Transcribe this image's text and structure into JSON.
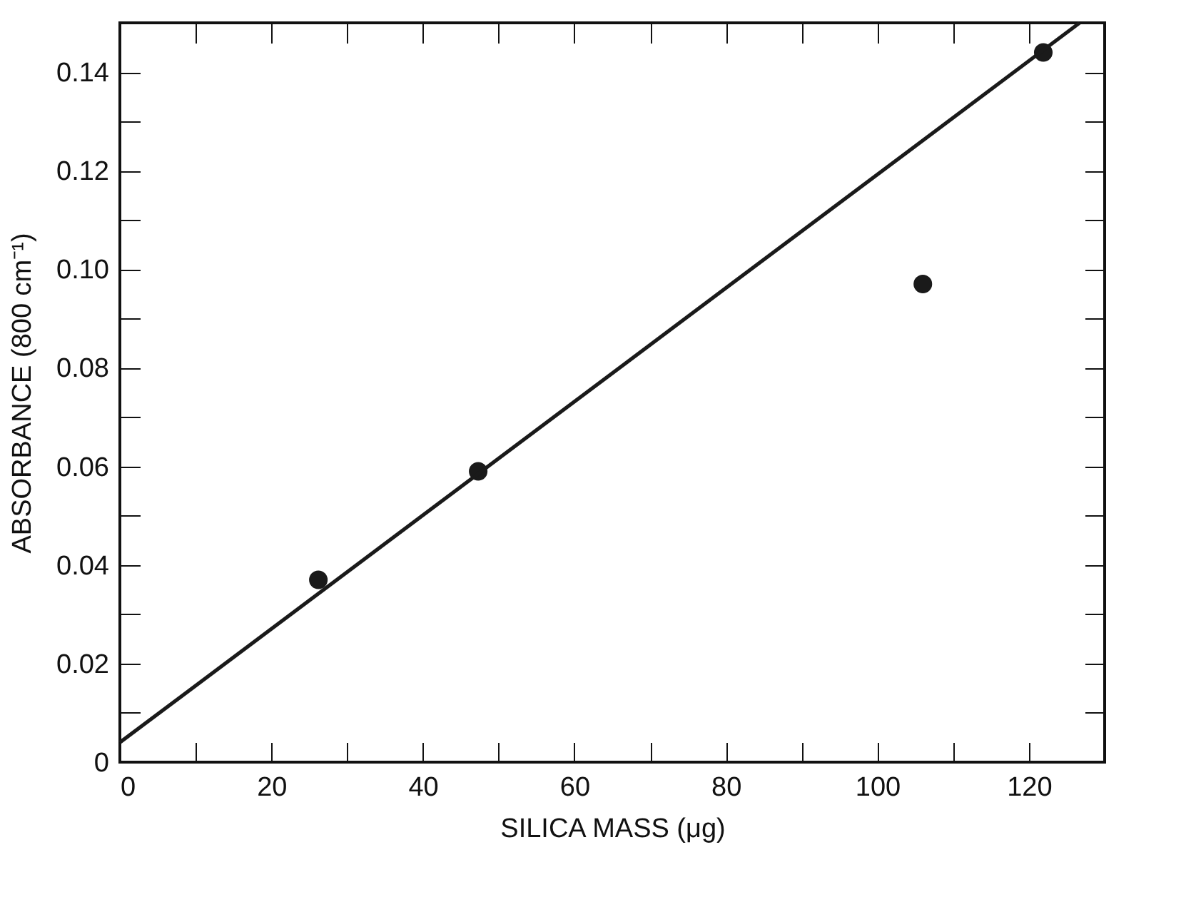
{
  "chart_data": {
    "type": "scatter",
    "xlabel": "SILICA MASS (μg)",
    "ylabel": "ABSORBANCE (800 cm⁻¹)",
    "xlim": [
      0,
      130
    ],
    "ylim": [
      0,
      0.15
    ],
    "xticks": [
      0,
      {
        "value": 10,
        "label": null
      },
      20,
      {
        "value": 30,
        "label": null
      },
      40,
      {
        "value": 50,
        "label": null
      },
      60,
      {
        "value": 70,
        "label": null
      },
      80,
      {
        "value": 90,
        "label": null
      },
      100,
      {
        "value": 110,
        "label": null
      },
      120
    ],
    "yticks": [
      0,
      {
        "value": 0.01,
        "label": null
      },
      {
        "value": 0.02,
        "label": "0.02"
      },
      {
        "value": 0.03,
        "label": null
      },
      {
        "value": 0.04,
        "label": "0.04"
      },
      {
        "value": 0.05,
        "label": null
      },
      {
        "value": 0.06,
        "label": "0.06"
      },
      {
        "value": 0.07,
        "label": null
      },
      {
        "value": 0.08,
        "label": "0.08"
      },
      {
        "value": 0.09,
        "label": null
      },
      {
        "value": 0.1,
        "label": "0.10"
      },
      {
        "value": 0.11,
        "label": null
      },
      {
        "value": 0.12,
        "label": "0.12"
      },
      {
        "value": 0.13,
        "label": null
      },
      {
        "value": 0.14,
        "label": "0.14"
      }
    ],
    "grid": false,
    "series": [
      {
        "type": "scatter",
        "marker": "circle",
        "color": "#1a1a1a",
        "x": [
          26.2,
          47.3,
          106,
          121.9
        ],
        "values": [
          0.037,
          0.059,
          0.097,
          0.144
        ]
      },
      {
        "type": "line",
        "marker": "none",
        "color": "#1a1a1a",
        "x": [
          0,
          126.7
        ],
        "values": [
          0.004,
          0.15
        ]
      }
    ]
  }
}
